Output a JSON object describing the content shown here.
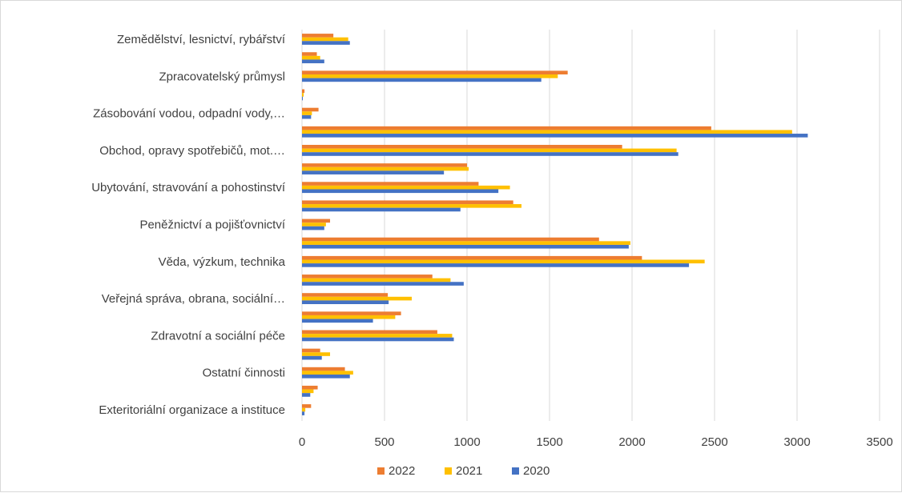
{
  "chart_data": {
    "type": "bar",
    "orientation": "horizontal",
    "grid": true,
    "legend_position": "bottom",
    "xlim": [
      0,
      3500
    ],
    "x_ticks": [
      "0",
      "500",
      "1000",
      "1500",
      "2000",
      "2500",
      "3000",
      "3500"
    ],
    "x_tick_values": [
      0,
      500,
      1000,
      1500,
      2000,
      2500,
      3000,
      3500
    ],
    "categories": [
      "Zemědělství, lesnictví, rybářství",
      "",
      "Zpracovatelský průmysl",
      "",
      "Zásobování vodou, odpadní vody,…",
      "",
      "Obchod, opravy spotřebičů, mot.…",
      "",
      "Ubytování, stravování a pohostinství",
      "",
      "Peněžnictví a pojišťovnictví",
      "",
      "Věda, výzkum, technika",
      "",
      "Veřejná správa, obrana, sociální…",
      "",
      "Zdravotní a sociální péče",
      "",
      "Ostatní činnosti",
      "",
      "Exteritoriální organizace a instituce"
    ],
    "series": [
      {
        "name": "2022",
        "color": "#ED7D31",
        "values": [
          190,
          90,
          1610,
          15,
          100,
          2480,
          1940,
          1000,
          1070,
          1280,
          170,
          1800,
          2060,
          790,
          520,
          600,
          820,
          110,
          260,
          95,
          55
        ]
      },
      {
        "name": "2021",
        "color": "#FFC000",
        "values": [
          280,
          110,
          1550,
          10,
          60,
          2970,
          2270,
          1010,
          1260,
          1330,
          145,
          1990,
          2440,
          900,
          665,
          565,
          910,
          170,
          310,
          70,
          20
        ]
      },
      {
        "name": "2020",
        "color": "#4472C4",
        "values": [
          290,
          135,
          1450,
          5,
          55,
          3065,
          2280,
          860,
          1190,
          960,
          135,
          1980,
          2345,
          980,
          525,
          430,
          920,
          120,
          290,
          50,
          15
        ]
      }
    ],
    "legend_order": [
      "2022",
      "2021",
      "2020"
    ]
  }
}
